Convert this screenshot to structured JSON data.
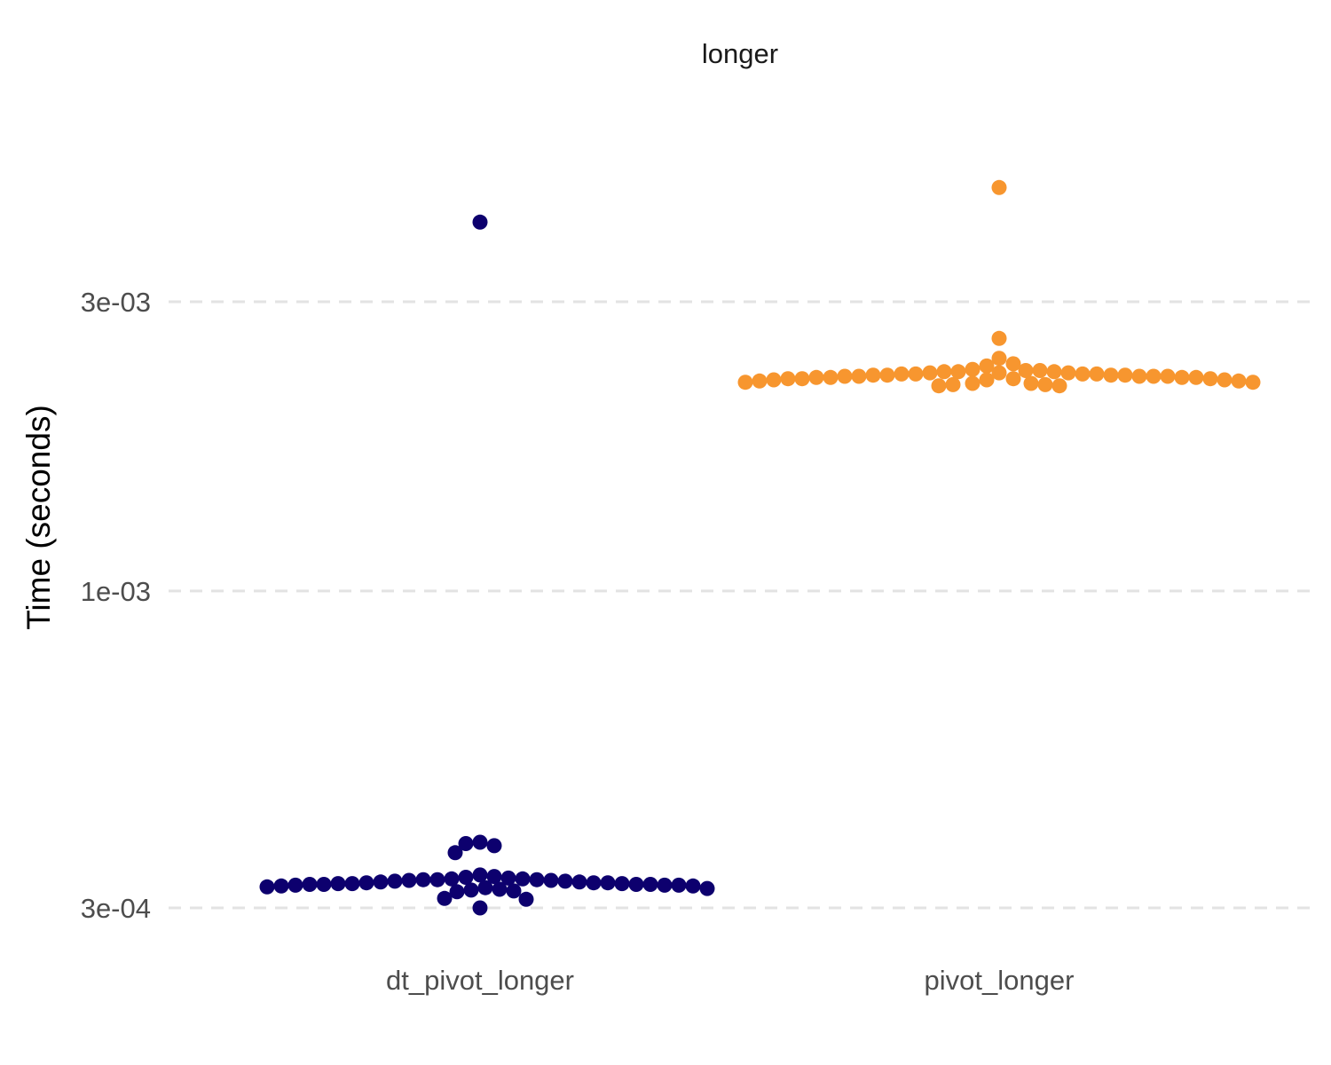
{
  "chart_data": {
    "type": "scatter",
    "title": "longer",
    "xlabel": "",
    "ylabel": "Time (seconds)",
    "y_scale": "log10",
    "ylim": [
      0.00026,
      0.0055
    ],
    "y_ticks": [
      {
        "value": 0.0003,
        "label": "3e-04"
      },
      {
        "value": 0.001,
        "label": "1e-03"
      },
      {
        "value": 0.003,
        "label": "3e-03"
      }
    ],
    "categories": [
      "dt_pivot_longer",
      "pivot_longer"
    ],
    "grid": "horizontal-dashed",
    "legend": "none",
    "series": [
      {
        "category": "dt_pivot_longer",
        "color": "#0d006e",
        "values": [
          0.00406,
          0.000385,
          0.00038,
          0.000383,
          0.00037,
          0.00034,
          0.000338,
          0.000337,
          0.000336,
          0.000335,
          0.000335,
          0.000334,
          0.000334,
          0.000334,
          0.000333,
          0.000333,
          0.000332,
          0.000332,
          0.000331,
          0.000331,
          0.00033,
          0.00033,
          0.00033,
          0.000329,
          0.000329,
          0.000329,
          0.000328,
          0.000328,
          0.000328,
          0.000328,
          0.000327,
          0.000327,
          0.000327,
          0.000326,
          0.000326,
          0.000325,
          0.000324,
          0.000323,
          0.000322,
          0.000321,
          0.00032,
          0.000319,
          0.000311,
          0.00031,
          0.0003
        ]
      },
      {
        "category": "pivot_longer",
        "color": "#f7962f",
        "values": [
          0.00463,
          0.00261,
          0.00242,
          0.00237,
          0.00235,
          0.00232,
          0.00231,
          0.00231,
          0.0023,
          0.0023,
          0.0023,
          0.00229,
          0.00229,
          0.00229,
          0.00228,
          0.00228,
          0.00228,
          0.00228,
          0.00227,
          0.00227,
          0.00227,
          0.00227,
          0.00226,
          0.00226,
          0.00226,
          0.00226,
          0.00226,
          0.00225,
          0.00225,
          0.00225,
          0.00225,
          0.00224,
          0.00224,
          0.00224,
          0.00224,
          0.00223,
          0.00223,
          0.00223,
          0.00222,
          0.00222,
          0.00221,
          0.00221,
          0.0022,
          0.0022,
          0.00219,
          0.00219,
          0.00218,
          0.00218
        ]
      }
    ]
  }
}
